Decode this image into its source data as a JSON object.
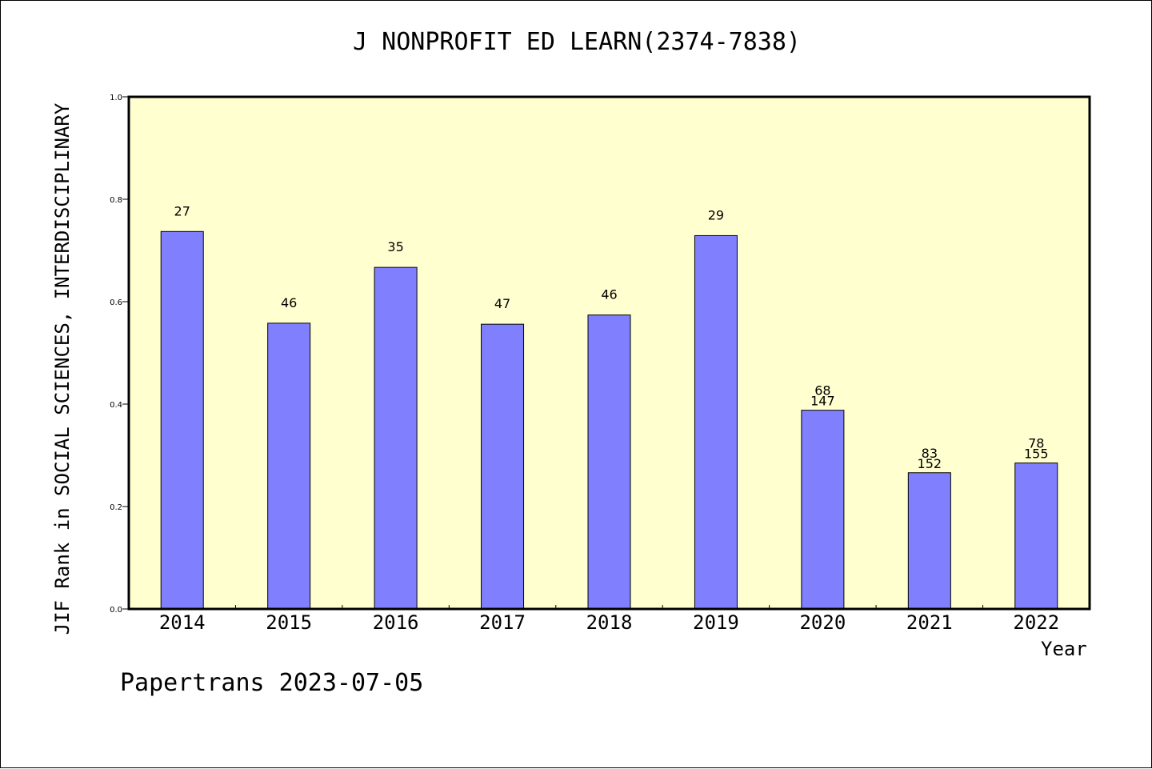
{
  "chart_data": {
    "type": "bar",
    "title": "J NONPROFIT ED LEARN(2374-7838)",
    "xlabel": "Year",
    "ylabel": "JIF Rank in SOCIAL SCIENCES, INTERDISCIPLINARY",
    "ylim": [
      0,
      1.0
    ],
    "yticks": [
      "0.0",
      "0.2",
      "0.4",
      "0.6",
      "0.8",
      "1.0"
    ],
    "categories": [
      "2014",
      "2015",
      "2016",
      "2017",
      "2018",
      "2019",
      "2020",
      "2021",
      "2022"
    ],
    "values": [
      0.737,
      0.558,
      0.667,
      0.556,
      0.574,
      0.729,
      0.388,
      0.266,
      0.285
    ],
    "bar_labels": [
      [
        "27"
      ],
      [
        "46"
      ],
      [
        "35"
      ],
      [
        "47"
      ],
      [
        "46"
      ],
      [
        "29"
      ],
      [
        "68",
        "147"
      ],
      [
        "83",
        "152"
      ],
      [
        "78",
        "155"
      ]
    ],
    "grid": false,
    "colors": {
      "bar": "#8080ff",
      "plot_bg": "#ffffd0"
    }
  },
  "footer": "Papertrans 2023-07-05"
}
